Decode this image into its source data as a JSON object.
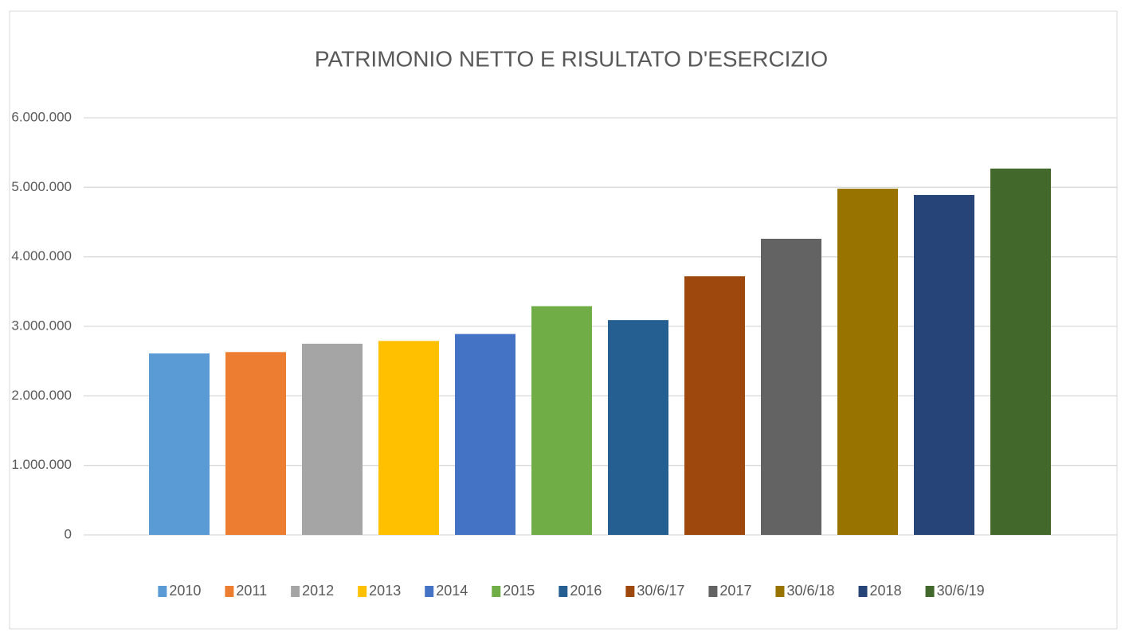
{
  "chart_data": {
    "type": "bar",
    "title": "PATRIMONIO NETTO E RISULTATO D'ESERCIZIO",
    "categories": [
      "2010",
      "2011",
      "2012",
      "2013",
      "2014",
      "2015",
      "2016",
      "30/6/17",
      "2017",
      "30/6/18",
      "2018",
      "30/6/19"
    ],
    "values": [
      2610000,
      2630000,
      2750000,
      2790000,
      2890000,
      3290000,
      3090000,
      3720000,
      4260000,
      4980000,
      4890000,
      5270000
    ],
    "colors": [
      "#5b9bd5",
      "#ed7d31",
      "#a5a5a5",
      "#ffc000",
      "#4472c4",
      "#70ad47",
      "#255e91",
      "#9e480e",
      "#636363",
      "#997300",
      "#264478",
      "#43682b"
    ],
    "ylim": [
      0,
      6000000
    ],
    "yticks": [
      0,
      {
        "value": 1000000,
        "label": "1.000.000"
      },
      {
        "value": 2000000,
        "label": "2.000.000"
      },
      {
        "value": 3000000,
        "label": "3.000.000"
      },
      {
        "value": 4000000,
        "label": "4.000.000"
      },
      {
        "value": 5000000,
        "label": "5.000.000"
      },
      {
        "value": 6000000,
        "label": "6.000.000"
      }
    ],
    "grid": true,
    "legend": "bottom"
  }
}
